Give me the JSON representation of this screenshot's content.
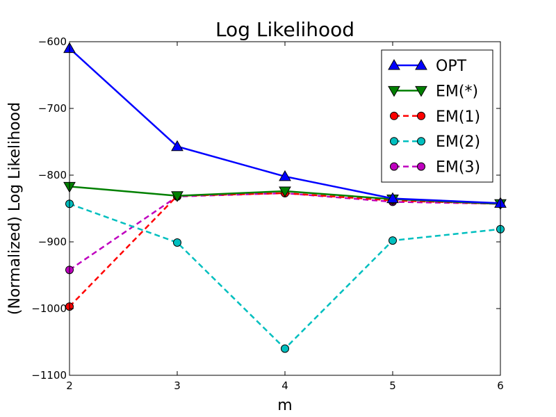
{
  "chart_data": {
    "type": "line",
    "title": "Log Likelihood",
    "xlabel": "m",
    "ylabel": "(Normalized) Log Likelihood",
    "x": [
      2,
      3,
      4,
      5,
      6
    ],
    "xlim": [
      2,
      6
    ],
    "ylim": [
      -1100,
      -600
    ],
    "xticks": [
      "2",
      "3",
      "4",
      "5",
      "6"
    ],
    "yticks": [
      "−600",
      "−700",
      "−800",
      "−900",
      "−1000",
      "−1100"
    ],
    "ytick_values": [
      -600,
      -700,
      -800,
      -900,
      -1000,
      -1100
    ],
    "grid": false,
    "legend_position": "top-right",
    "series": [
      {
        "name": "OPT",
        "values": [
          -610,
          -757,
          -802,
          -835,
          -842
        ],
        "color": "#0000ff",
        "linestyle": "solid",
        "marker": "triangle-up"
      },
      {
        "name": "EM(*)",
        "values": [
          -817,
          -831,
          -824,
          -836,
          -843
        ],
        "color": "#008000",
        "linestyle": "solid",
        "marker": "triangle-down"
      },
      {
        "name": "EM(1)",
        "values": [
          -997,
          -831,
          -827,
          -838,
          -843
        ],
        "color": "#ff0000",
        "linestyle": "dashed",
        "marker": "circle"
      },
      {
        "name": "EM(2)",
        "values": [
          -843,
          -901,
          -1060,
          -898,
          -881
        ],
        "color": "#00bfbf",
        "linestyle": "dashed",
        "marker": "circle"
      },
      {
        "name": "EM(3)",
        "values": [
          -942,
          -832,
          -827,
          -840,
          -843
        ],
        "color": "#bf00bf",
        "linestyle": "dashed",
        "marker": "circle"
      }
    ]
  }
}
